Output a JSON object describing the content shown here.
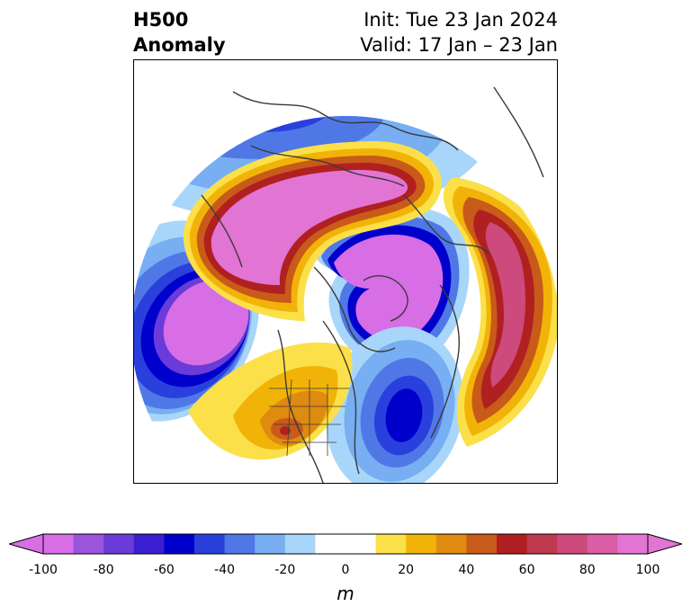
{
  "title": {
    "left_line1": "H500",
    "left_line2": "Anomaly",
    "right_line1": "Init: Tue 23 Jan 2024",
    "right_line2": "Valid: 17 Jan – 23 Jan"
  },
  "colorbar": {
    "units": "m",
    "ticks": [
      "-100",
      "-80",
      "-60",
      "-40",
      "-20",
      "0",
      "20",
      "40",
      "60",
      "80",
      "100"
    ],
    "colors": [
      "#d76ee6",
      "#9b55db",
      "#6a3bd8",
      "#3a1ed0",
      "#0000cc",
      "#2a40dc",
      "#4f78e6",
      "#78aef2",
      "#a8d6fa",
      "#ffffff",
      "#ffffff",
      "#fbe04a",
      "#f2b308",
      "#df8a10",
      "#c85a1a",
      "#b02020",
      "#bf3a4e",
      "#cc4a7c",
      "#d95ea6",
      "#e274d4"
    ],
    "extend_min_color": "#d76ee6",
    "extend_max_color": "#e274d4"
  },
  "map": {
    "projection": "north polar stereographic",
    "field": "500 hPa geopotential height anomaly",
    "palette": {
      "neg_outer": "#a8d6fa",
      "neg_2": "#78aef2",
      "neg_3": "#4f78e6",
      "neg_4": "#2a40dc",
      "neg_5": "#0000cc",
      "neg_6": "#6a3bd8",
      "neg_core": "#d76ee6",
      "pos_outer": "#fbe04a",
      "pos_2": "#f2b308",
      "pos_3": "#df8a10",
      "pos_4": "#c85a1a",
      "pos_5": "#b02020",
      "pos_6": "#cc4a7c",
      "pos_core": "#e274d4",
      "coastline": "#3a3a3a"
    }
  }
}
